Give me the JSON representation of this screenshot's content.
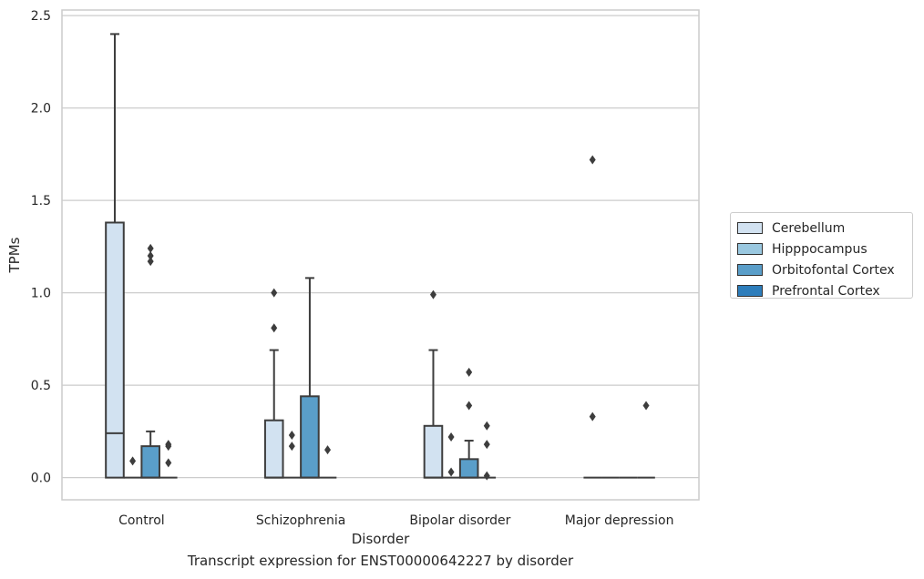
{
  "chart_data": {
    "type": "box",
    "caption": "Transcript expression for ENST00000642227 by disorder",
    "xlabel": "Disorder",
    "ylabel": "TPMs",
    "ylim": [
      -0.12,
      2.53
    ],
    "yticks": [
      0.0,
      0.5,
      1.0,
      1.5,
      2.0,
      2.5
    ],
    "ytick_labels": [
      "0.0",
      "0.5",
      "1.0",
      "1.5",
      "2.0",
      "2.5"
    ],
    "grid": "horizontal",
    "legend_position": "right",
    "categories": [
      "Control",
      "Schizophrenia",
      "Bipolar disorder",
      "Major depression"
    ],
    "series": [
      {
        "name": "Cerebellum",
        "color": "#d2e2f1",
        "boxes": [
          {
            "q1": 0.0,
            "median": 0.24,
            "q3": 1.38,
            "whisker_low": 0.0,
            "whisker_high": 2.4,
            "outliers": []
          },
          {
            "q1": 0.0,
            "median": 0.0,
            "q3": 0.31,
            "whisker_low": 0.0,
            "whisker_high": 0.69,
            "outliers": [
              0.81,
              1.0
            ]
          },
          {
            "q1": 0.0,
            "median": 0.0,
            "q3": 0.28,
            "whisker_low": 0.0,
            "whisker_high": 0.69,
            "outliers": [
              0.99
            ]
          },
          {
            "q1": 0.0,
            "median": 0.0,
            "q3": 0.0,
            "whisker_low": 0.0,
            "whisker_high": 0.0,
            "outliers": [
              0.33,
              1.72
            ]
          }
        ]
      },
      {
        "name": "Hipppocampus",
        "color": "#9ac8e0",
        "boxes": [
          {
            "q1": 0.0,
            "median": 0.0,
            "q3": 0.0,
            "whisker_low": 0.0,
            "whisker_high": 0.0,
            "outliers": [
              0.09
            ]
          },
          {
            "q1": 0.0,
            "median": 0.0,
            "q3": 0.0,
            "whisker_low": 0.0,
            "whisker_high": 0.0,
            "outliers": [
              0.17,
              0.23
            ]
          },
          {
            "q1": 0.0,
            "median": 0.0,
            "q3": 0.0,
            "whisker_low": 0.0,
            "whisker_high": 0.0,
            "outliers": [
              0.03,
              0.22
            ]
          },
          {
            "q1": 0.0,
            "median": 0.0,
            "q3": 0.0,
            "whisker_low": 0.0,
            "whisker_high": 0.0,
            "outliers": []
          }
        ]
      },
      {
        "name": "Orbitofontal Cortex",
        "color": "#5a9ec9",
        "boxes": [
          {
            "q1": 0.0,
            "median": 0.0,
            "q3": 0.17,
            "whisker_low": 0.0,
            "whisker_high": 0.25,
            "outliers": [
              1.17,
              1.2,
              1.24
            ]
          },
          {
            "q1": 0.0,
            "median": 0.0,
            "q3": 0.44,
            "whisker_low": 0.0,
            "whisker_high": 1.08,
            "outliers": []
          },
          {
            "q1": 0.0,
            "median": 0.0,
            "q3": 0.1,
            "whisker_low": 0.0,
            "whisker_high": 0.2,
            "outliers": [
              0.39,
              0.57
            ]
          },
          {
            "q1": 0.0,
            "median": 0.0,
            "q3": 0.0,
            "whisker_low": 0.0,
            "whisker_high": 0.0,
            "outliers": []
          }
        ]
      },
      {
        "name": "Prefrontal Cortex",
        "color": "#2d7dbb",
        "boxes": [
          {
            "q1": 0.0,
            "median": 0.0,
            "q3": 0.0,
            "whisker_low": 0.0,
            "whisker_high": 0.0,
            "outliers": [
              0.08,
              0.17,
              0.18
            ]
          },
          {
            "q1": 0.0,
            "median": 0.0,
            "q3": 0.0,
            "whisker_low": 0.0,
            "whisker_high": 0.0,
            "outliers": [
              0.15
            ]
          },
          {
            "q1": 0.0,
            "median": 0.0,
            "q3": 0.0,
            "whisker_low": 0.0,
            "whisker_high": 0.0,
            "outliers": [
              0.01,
              0.18,
              0.28
            ]
          },
          {
            "q1": 0.0,
            "median": 0.0,
            "q3": 0.0,
            "whisker_low": 0.0,
            "whisker_high": 0.0,
            "outliers": [
              0.39
            ]
          }
        ]
      }
    ]
  }
}
